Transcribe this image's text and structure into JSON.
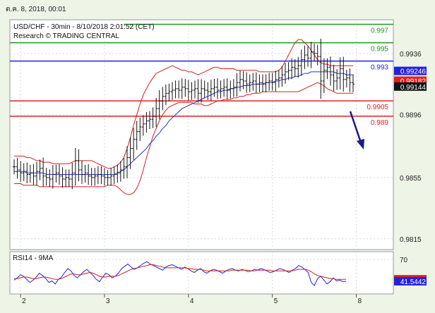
{
  "header": {
    "date_text": "ต.ค. 8, 2018, 00:01"
  },
  "chart_data": [
    {
      "type": "candlestick",
      "title": "USD/CHF - 30min - 8/10/2018 2:01:52 (CET)",
      "subtitle": "Research © TRADING CENTRAL",
      "ylim": [
        0.9808,
        0.9958
      ],
      "y_ticks": [
        "0.9936",
        "0.9896",
        "0.9855",
        "0.9815"
      ],
      "y_tick_values": [
        0.9936,
        0.9896,
        0.9855,
        0.9815
      ],
      "x_tick_labels": [
        "2",
        "3",
        "4",
        "5",
        "8"
      ],
      "x_tick_index": [
        2,
        28,
        54,
        80,
        106
      ],
      "levels": [
        {
          "label": "0.997",
          "value": 0.9955,
          "color": "#1a9d1a"
        },
        {
          "label": "0.995",
          "value": 0.9943,
          "color": "#1a9d1a"
        },
        {
          "label": "0.993",
          "value": 0.9931,
          "color": "#2222dd"
        },
        {
          "label": "0.9905",
          "value": 0.9905,
          "color": "#e02020"
        },
        {
          "label": "0.989",
          "value": 0.9895,
          "color": "#e02020"
        }
      ],
      "price_tags": [
        {
          "label": "0.99246",
          "value": 0.99246,
          "bg": "#2222dd",
          "fg": "#ffffff"
        },
        {
          "label": "0.99182",
          "value": 0.99182,
          "bg": "#e02020",
          "fg": "#ffffff"
        },
        {
          "label": "0.99144",
          "value": 0.99144,
          "bg": "#111111",
          "fg": "#ffffff"
        }
      ],
      "close": [
        0.9862,
        0.986,
        0.9858,
        0.9859,
        0.9857,
        0.9858,
        0.9856,
        0.9859,
        0.9861,
        0.9856,
        0.9855,
        0.9854,
        0.9857,
        0.9858,
        0.9856,
        0.9854,
        0.9855,
        0.9854,
        0.9858,
        0.9866,
        0.986,
        0.9857,
        0.9858,
        0.9856,
        0.9855,
        0.9856,
        0.9857,
        0.9856,
        0.9855,
        0.9855,
        0.9856,
        0.9857,
        0.9858,
        0.986,
        0.9862,
        0.9868,
        0.9874,
        0.988,
        0.9885,
        0.9888,
        0.989,
        0.9892,
        0.9893,
        0.9895,
        0.99,
        0.9905,
        0.9908,
        0.991,
        0.9911,
        0.9912,
        0.9913,
        0.9912,
        0.9914,
        0.9913,
        0.9911,
        0.9912,
        0.9913,
        0.991,
        0.9913,
        0.9912,
        0.9911,
        0.9913,
        0.9914,
        0.9912,
        0.9913,
        0.9914,
        0.9912,
        0.9913,
        0.9914,
        0.9917,
        0.9919,
        0.9918,
        0.9916,
        0.9917,
        0.9918,
        0.9916,
        0.9917,
        0.9916,
        0.9917,
        0.9918,
        0.9917,
        0.9919,
        0.992,
        0.9922,
        0.9924,
        0.9925,
        0.9927,
        0.9926,
        0.9928,
        0.9932,
        0.9935,
        0.9933,
        0.9937,
        0.9936,
        0.9934,
        0.9918,
        0.9925,
        0.9927,
        0.9922,
        0.9918,
        0.992,
        0.9926,
        0.9919,
        0.992,
        0.9917,
        0.9916
      ],
      "bollinger_upper": [
        0.9869,
        0.9869,
        0.9869,
        0.9869,
        0.9868,
        0.9868,
        0.9867,
        0.9866,
        0.9866,
        0.9865,
        0.9865,
        0.9865,
        0.9864,
        0.9864,
        0.9864,
        0.9864,
        0.9864,
        0.9864,
        0.9865,
        0.9866,
        0.9866,
        0.9866,
        0.9866,
        0.9866,
        0.9866,
        0.9865,
        0.9864,
        0.9863,
        0.9862,
        0.9861,
        0.9861,
        0.9862,
        0.9863,
        0.9865,
        0.9868,
        0.9874,
        0.9881,
        0.9889,
        0.9896,
        0.9903,
        0.9909,
        0.9913,
        0.9917,
        0.992,
        0.9923,
        0.9924,
        0.9925,
        0.9926,
        0.9927,
        0.9928,
        0.9927,
        0.9926,
        0.9925,
        0.9925,
        0.9924,
        0.9924,
        0.9923,
        0.9922,
        0.9923,
        0.9924,
        0.9925,
        0.9926,
        0.9927,
        0.9927,
        0.9926,
        0.9926,
        0.9926,
        0.9926,
        0.9926,
        0.9925,
        0.9925,
        0.9925,
        0.9925,
        0.9925,
        0.9925,
        0.9925,
        0.9924,
        0.9924,
        0.9924,
        0.9924,
        0.9924,
        0.9924,
        0.9925,
        0.9927,
        0.9931,
        0.9935,
        0.9939,
        0.9943,
        0.9945,
        0.9945,
        0.9943,
        0.9941,
        0.9938,
        0.9935,
        0.9932,
        0.993,
        0.9929,
        0.9929,
        0.9928,
        0.9928,
        0.9928,
        0.9928,
        0.9928,
        0.9928,
        0.9928,
        0.9928
      ],
      "bollinger_lower": [
        0.9851,
        0.9851,
        0.9851,
        0.985,
        0.985,
        0.985,
        0.985,
        0.985,
        0.9849,
        0.9849,
        0.9849,
        0.9849,
        0.9849,
        0.9849,
        0.9849,
        0.9849,
        0.9849,
        0.9849,
        0.9849,
        0.9849,
        0.9849,
        0.9849,
        0.9849,
        0.9849,
        0.9849,
        0.9849,
        0.9849,
        0.9849,
        0.9849,
        0.985,
        0.985,
        0.985,
        0.9849,
        0.9847,
        0.9845,
        0.9844,
        0.9844,
        0.9845,
        0.9848,
        0.9853,
        0.986,
        0.9868,
        0.9875,
        0.9882,
        0.9887,
        0.9892,
        0.9896,
        0.9899,
        0.9901,
        0.9902,
        0.9903,
        0.9904,
        0.9904,
        0.9904,
        0.9904,
        0.9904,
        0.9903,
        0.9903,
        0.9903,
        0.9902,
        0.9902,
        0.9903,
        0.9904,
        0.9905,
        0.9905,
        0.9906,
        0.9906,
        0.9906,
        0.9907,
        0.9907,
        0.9908,
        0.9908,
        0.9909,
        0.9909,
        0.991,
        0.991,
        0.991,
        0.9911,
        0.9911,
        0.9911,
        0.9911,
        0.9911,
        0.9911,
        0.9911,
        0.9911,
        0.9911,
        0.9911,
        0.9911,
        0.9911,
        0.9912,
        0.9913,
        0.9914,
        0.9915,
        0.9916,
        0.9917,
        0.9916,
        0.9915,
        0.9913,
        0.9912,
        0.9911,
        0.991,
        0.991,
        0.991,
        0.991,
        0.991,
        0.991
      ],
      "moving_average": [
        0.9859,
        0.9859,
        0.9859,
        0.9859,
        0.9858,
        0.9858,
        0.9858,
        0.9858,
        0.9858,
        0.9858,
        0.9857,
        0.9857,
        0.9857,
        0.9857,
        0.9857,
        0.9857,
        0.9857,
        0.9857,
        0.9857,
        0.9857,
        0.9857,
        0.9857,
        0.9857,
        0.9857,
        0.9857,
        0.9857,
        0.9857,
        0.9857,
        0.9857,
        0.9857,
        0.9857,
        0.9857,
        0.9858,
        0.9859,
        0.986,
        0.9862,
        0.9864,
        0.9866,
        0.9868,
        0.987,
        0.9872,
        0.9874,
        0.9877,
        0.9879,
        0.9882,
        0.9884,
        0.9887,
        0.9889,
        0.9892,
        0.9894,
        0.9896,
        0.9898,
        0.99,
        0.9901,
        0.9902,
        0.9903,
        0.9904,
        0.9905,
        0.9906,
        0.9907,
        0.9908,
        0.9909,
        0.991,
        0.9911,
        0.9911,
        0.9912,
        0.9912,
        0.9913,
        0.9913,
        0.9914,
        0.9914,
        0.9915,
        0.9915,
        0.9915,
        0.9916,
        0.9916,
        0.9916,
        0.9916,
        0.9917,
        0.9917,
        0.9917,
        0.9918,
        0.9918,
        0.9919,
        0.9919,
        0.992,
        0.992,
        0.9921,
        0.9921,
        0.9922,
        0.9923,
        0.9923,
        0.9924,
        0.9924,
        0.9924,
        0.9924,
        0.9924,
        0.9924,
        0.9924,
        0.9924,
        0.9923,
        0.9923,
        0.9923,
        0.9922,
        0.9922,
        0.9922
      ]
    },
    {
      "type": "line",
      "title": "RSI14 - 9MA",
      "ylim": [
        25,
        80
      ],
      "y_ticks": [
        "70"
      ],
      "y_tick_values": [
        70
      ],
      "price_tags": [
        {
          "label": "44.0966",
          "value": 44.0966,
          "bg": "#e02020",
          "fg": "#ffffff"
        },
        {
          "label": "41.5442",
          "value": 41.5442,
          "bg": "#2222dd",
          "fg": "#ffffff"
        }
      ],
      "series": [
        {
          "color": "#2222dd",
          "values": [
            43,
            46,
            50,
            48,
            44,
            40,
            43,
            47,
            52,
            49,
            45,
            40,
            42,
            38,
            44,
            47,
            53,
            58,
            55,
            49,
            46,
            50,
            54,
            57,
            53,
            49,
            44,
            41,
            47,
            52,
            50,
            46,
            48,
            52,
            58,
            61,
            64,
            60,
            57,
            59,
            62,
            65,
            67,
            64,
            62,
            60,
            58,
            56,
            60,
            62,
            63,
            61,
            59,
            57,
            60,
            58,
            55,
            53,
            56,
            58,
            54,
            52,
            55,
            57,
            56,
            54,
            52,
            55,
            57,
            58,
            56,
            55,
            57,
            56,
            54,
            55,
            57,
            56,
            58,
            57,
            55,
            53,
            54,
            56,
            58,
            57,
            55,
            53,
            56,
            58,
            62,
            60,
            57,
            53,
            40,
            36,
            45,
            48,
            43,
            38,
            41,
            46,
            42,
            43,
            41,
            41.5
          ]
        },
        {
          "color": "#cc2020",
          "values": [
            45,
            45,
            46,
            47,
            47,
            46,
            45,
            45,
            46,
            47,
            47,
            46,
            45,
            44,
            44,
            45,
            47,
            49,
            51,
            51,
            50,
            50,
            51,
            52,
            53,
            52,
            50,
            48,
            47,
            47,
            48,
            48,
            48,
            49,
            51,
            53,
            55,
            57,
            58,
            59,
            60,
            61,
            62,
            63,
            63,
            62,
            61,
            60,
            59,
            59,
            59,
            59,
            59,
            59,
            59,
            58,
            58,
            57,
            57,
            57,
            56,
            55,
            55,
            55,
            55,
            55,
            55,
            55,
            55,
            56,
            56,
            56,
            56,
            56,
            56,
            55,
            55,
            56,
            56,
            56,
            56,
            56,
            55,
            55,
            55,
            55,
            55,
            55,
            55,
            56,
            57,
            57,
            57,
            56,
            54,
            51,
            49,
            48,
            47,
            46,
            45,
            45,
            44,
            44,
            44,
            44.1
          ]
        }
      ]
    }
  ]
}
